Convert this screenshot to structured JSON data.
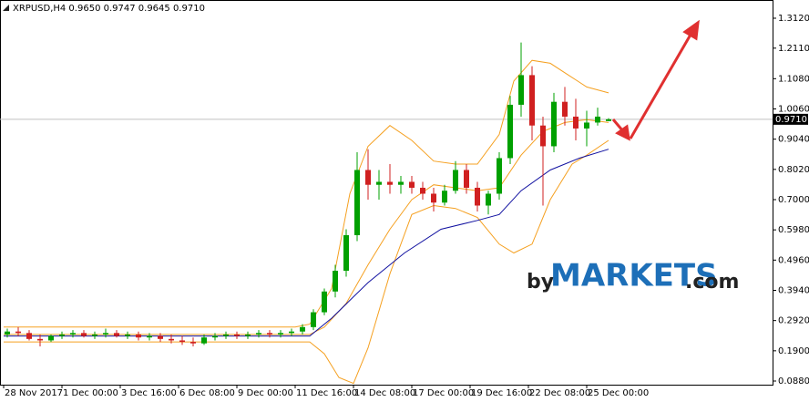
{
  "chart_data": {
    "type": "candlestick",
    "title": "XRPUSD,H4 0.9650 0.9747 0.9645 0.9710",
    "x": [
      1,
      4,
      7,
      10,
      13,
      16,
      19,
      22,
      25,
      28,
      31,
      34,
      37,
      40,
      43,
      46,
      49,
      52,
      55,
      58,
      61,
      64,
      67,
      70,
      73,
      76,
      79,
      82,
      85,
      88,
      91,
      94,
      97,
      100,
      103,
      106,
      109,
      112,
      115,
      118,
      121,
      124,
      127,
      130,
      133,
      136,
      139,
      142,
      145,
      148,
      151,
      154,
      157,
      160,
      163,
      166
    ],
    "open": [
      0.245,
      0.255,
      0.25,
      0.23,
      0.225,
      0.24,
      0.245,
      0.25,
      0.24,
      0.245,
      0.25,
      0.24,
      0.245,
      0.235,
      0.24,
      0.23,
      0.225,
      0.22,
      0.215,
      0.235,
      0.24,
      0.245,
      0.24,
      0.245,
      0.25,
      0.245,
      0.25,
      0.255,
      0.27,
      0.32,
      0.39,
      0.46,
      0.58,
      0.8,
      0.75,
      0.76,
      0.75,
      0.76,
      0.74,
      0.72,
      0.69,
      0.73,
      0.8,
      0.74,
      0.68,
      0.72,
      0.84,
      1.02,
      1.12,
      0.95,
      0.88,
      1.03,
      0.98,
      0.94,
      0.96,
      0.965
    ],
    "high": [
      0.265,
      0.27,
      0.26,
      0.245,
      0.245,
      0.255,
      0.26,
      0.26,
      0.255,
      0.265,
      0.26,
      0.255,
      0.255,
      0.25,
      0.25,
      0.245,
      0.24,
      0.235,
      0.245,
      0.25,
      0.255,
      0.255,
      0.255,
      0.26,
      0.26,
      0.26,
      0.265,
      0.28,
      0.33,
      0.4,
      0.48,
      0.6,
      0.86,
      0.87,
      0.8,
      0.82,
      0.78,
      0.78,
      0.76,
      0.74,
      0.75,
      0.83,
      0.82,
      0.76,
      0.73,
      0.86,
      1.05,
      1.23,
      1.15,
      0.98,
      1.06,
      1.08,
      1.04,
      1.0,
      1.01,
      0.9747
    ],
    "low": [
      0.235,
      0.24,
      0.225,
      0.205,
      0.22,
      0.23,
      0.235,
      0.235,
      0.23,
      0.235,
      0.235,
      0.23,
      0.225,
      0.225,
      0.22,
      0.215,
      0.21,
      0.205,
      0.21,
      0.225,
      0.23,
      0.23,
      0.23,
      0.235,
      0.235,
      0.235,
      0.24,
      0.245,
      0.26,
      0.31,
      0.37,
      0.44,
      0.56,
      0.7,
      0.7,
      0.72,
      0.72,
      0.72,
      0.7,
      0.66,
      0.68,
      0.72,
      0.72,
      0.66,
      0.65,
      0.7,
      0.82,
      0.98,
      0.9,
      0.68,
      0.86,
      0.95,
      0.9,
      0.88,
      0.95,
      0.9645
    ],
    "close": [
      0.255,
      0.25,
      0.23,
      0.225,
      0.24,
      0.245,
      0.25,
      0.24,
      0.245,
      0.25,
      0.24,
      0.245,
      0.235,
      0.24,
      0.23,
      0.225,
      0.22,
      0.215,
      0.235,
      0.24,
      0.245,
      0.24,
      0.245,
      0.25,
      0.245,
      0.25,
      0.255,
      0.27,
      0.32,
      0.39,
      0.46,
      0.58,
      0.8,
      0.75,
      0.76,
      0.75,
      0.76,
      0.74,
      0.72,
      0.69,
      0.73,
      0.8,
      0.74,
      0.68,
      0.72,
      0.84,
      1.02,
      1.12,
      0.95,
      0.88,
      1.03,
      0.98,
      0.94,
      0.96,
      0.98,
      0.971
    ],
    "up_color": "#00a000",
    "down_color": "#d02020",
    "lines": [
      {
        "color": "#f5a020",
        "x": [
          0,
          40,
          80,
          84,
          90,
          95,
          100,
          106,
          112,
          118,
          124,
          130,
          136,
          140,
          145,
          150,
          155,
          160,
          166
        ],
        "values": [
          0.27,
          0.27,
          0.27,
          0.28,
          0.4,
          0.72,
          0.88,
          0.95,
          0.9,
          0.83,
          0.82,
          0.82,
          0.92,
          1.1,
          1.17,
          1.16,
          1.12,
          1.08,
          1.06
        ]
      },
      {
        "color": "#f5a020",
        "x": [
          0,
          40,
          84,
          88,
          94,
          100,
          106,
          112,
          118,
          124,
          130,
          136,
          142,
          148,
          154,
          160,
          166
        ],
        "values": [
          0.245,
          0.245,
          0.245,
          0.27,
          0.35,
          0.48,
          0.6,
          0.7,
          0.75,
          0.74,
          0.73,
          0.74,
          0.85,
          0.93,
          0.96,
          0.97,
          0.96
        ]
      },
      {
        "color": "#f5a020",
        "x": [
          0,
          40,
          80,
          84,
          88,
          92,
          96,
          100,
          106,
          112,
          118,
          124,
          130,
          136,
          140,
          145,
          150,
          156,
          160,
          166
        ],
        "values": [
          0.22,
          0.22,
          0.22,
          0.22,
          0.18,
          0.1,
          0.08,
          0.2,
          0.45,
          0.65,
          0.68,
          0.67,
          0.64,
          0.55,
          0.52,
          0.55,
          0.7,
          0.82,
          0.85,
          0.9
        ]
      },
      {
        "color": "#1010a0",
        "x": [
          0,
          84,
          90,
          100,
          110,
          120,
          130,
          136,
          142,
          150,
          158,
          166
        ],
        "values": [
          0.24,
          0.24,
          0.3,
          0.42,
          0.52,
          0.6,
          0.63,
          0.65,
          0.73,
          0.8,
          0.84,
          0.87
        ]
      }
    ],
    "xlim": [
      -1,
      211
    ],
    "ylim": [
      0.0757,
      1.3673
    ],
    "xticks": [
      {
        "value": 0,
        "label": "28 Nov 2017"
      },
      {
        "value": 16,
        "label": "1 Dec 00:00"
      },
      {
        "value": 32,
        "label": "3 Dec 16:00"
      },
      {
        "value": 48,
        "label": "6 Dec 08:00"
      },
      {
        "value": 64,
        "label": "9 Dec 00:00"
      },
      {
        "value": 80,
        "label": "11 Dec 16:00"
      },
      {
        "value": 96,
        "label": "14 Dec 08:00"
      },
      {
        "value": 112,
        "label": "17 Dec 00:00"
      },
      {
        "value": 128,
        "label": "19 Dec 16:00"
      },
      {
        "value": 144,
        "label": "22 Dec 08:00"
      },
      {
        "value": 160,
        "label": "25 Dec 00:00"
      }
    ],
    "yticks": [
      {
        "value": 1.312,
        "label": "1.3120"
      },
      {
        "value": 1.211,
        "label": "1.2110"
      },
      {
        "value": 1.108,
        "label": "1.1080"
      },
      {
        "value": 1.006,
        "label": "1.0060"
      },
      {
        "value": 0.904,
        "label": "0.9040"
      },
      {
        "value": 0.802,
        "label": "0.8020"
      },
      {
        "value": 0.7,
        "label": "0.7000"
      },
      {
        "value": 0.598,
        "label": "0.5980"
      },
      {
        "value": 0.496,
        "label": "0.4960"
      },
      {
        "value": 0.394,
        "label": "0.3940"
      },
      {
        "value": 0.292,
        "label": "0.2920"
      },
      {
        "value": 0.19,
        "label": "0.1900"
      },
      {
        "value": 0.088,
        "label": "0.0880"
      }
    ],
    "price_label": {
      "value": 0.971,
      "label": "0.9710"
    },
    "watermark": [
      "by",
      "MARKETS",
      ".com"
    ]
  }
}
